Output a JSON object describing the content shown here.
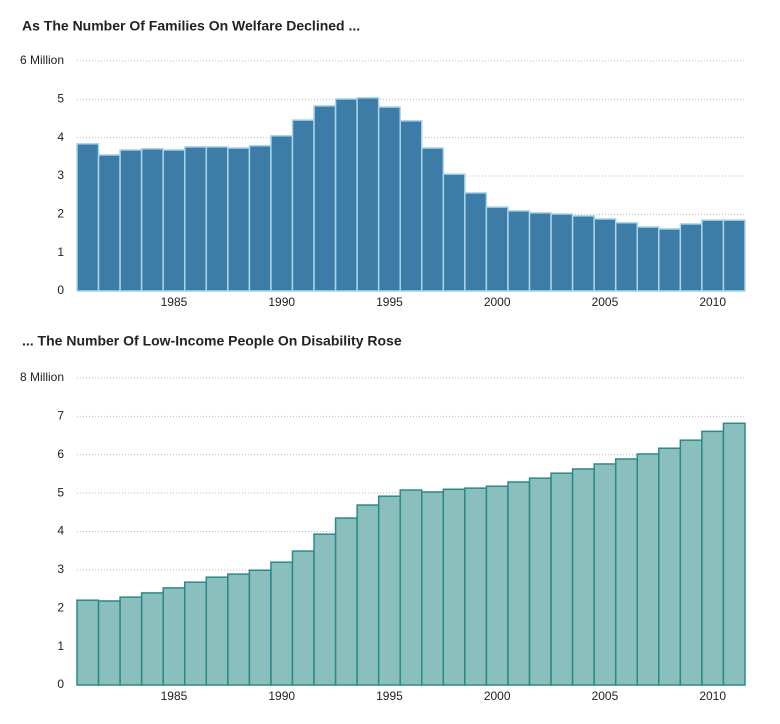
{
  "chart_data": [
    {
      "type": "bar",
      "title": "As The Number Of Families On Welfare Declined ...",
      "x": [
        1981,
        1982,
        1983,
        1984,
        1985,
        1986,
        1987,
        1988,
        1989,
        1990,
        1991,
        1992,
        1993,
        1994,
        1995,
        1996,
        1997,
        1998,
        1999,
        2000,
        2001,
        2002,
        2003,
        2004,
        2005,
        2006,
        2007,
        2008,
        2009,
        2010,
        2011
      ],
      "values": [
        3.84,
        3.55,
        3.68,
        3.71,
        3.68,
        3.76,
        3.76,
        3.73,
        3.79,
        4.05,
        4.46,
        4.83,
        5.01,
        5.04,
        4.8,
        4.44,
        3.73,
        3.05,
        2.56,
        2.19,
        2.09,
        2.04,
        2.01,
        1.96,
        1.88,
        1.78,
        1.67,
        1.62,
        1.75,
        1.85,
        1.85
      ],
      "color": "#3d7ca6",
      "edge_color": "#a8d5ee",
      "xlim": [
        1980.5,
        2011.5
      ],
      "xticks": [
        1985,
        1990,
        1995,
        2000,
        2005,
        2010
      ],
      "ylim": [
        0,
        6
      ],
      "yticks": [
        0,
        1,
        2,
        3,
        4,
        5,
        {
          "value": 6,
          "label": "6 Million"
        }
      ],
      "grid": true
    },
    {
      "type": "bar",
      "title": "... The Number Of Low-Income People On Disability Rose",
      "x": [
        1981,
        1982,
        1983,
        1984,
        1985,
        1986,
        1987,
        1988,
        1989,
        1990,
        1991,
        1992,
        1993,
        1994,
        1995,
        1996,
        1997,
        1998,
        1999,
        2000,
        2001,
        2002,
        2003,
        2004,
        2005,
        2006,
        2007,
        2008,
        2009,
        2010,
        2011
      ],
      "values": [
        2.21,
        2.19,
        2.29,
        2.4,
        2.53,
        2.68,
        2.81,
        2.89,
        2.99,
        3.2,
        3.49,
        3.93,
        4.35,
        4.69,
        4.92,
        5.08,
        5.03,
        5.1,
        5.13,
        5.18,
        5.29,
        5.39,
        5.52,
        5.63,
        5.76,
        5.89,
        6.02,
        6.17,
        6.38,
        6.61,
        6.82
      ],
      "color": "#8bbfbd",
      "edge_color": "#2b8a88",
      "xlim": [
        1980.5,
        2011.5
      ],
      "xticks": [
        1985,
        1990,
        1995,
        2000,
        2005,
        2010
      ],
      "ylim": [
        0,
        8
      ],
      "yticks": [
        0,
        1,
        2,
        3,
        4,
        5,
        6,
        7,
        {
          "value": 8,
          "label": "8 Million"
        }
      ],
      "grid": true
    }
  ]
}
